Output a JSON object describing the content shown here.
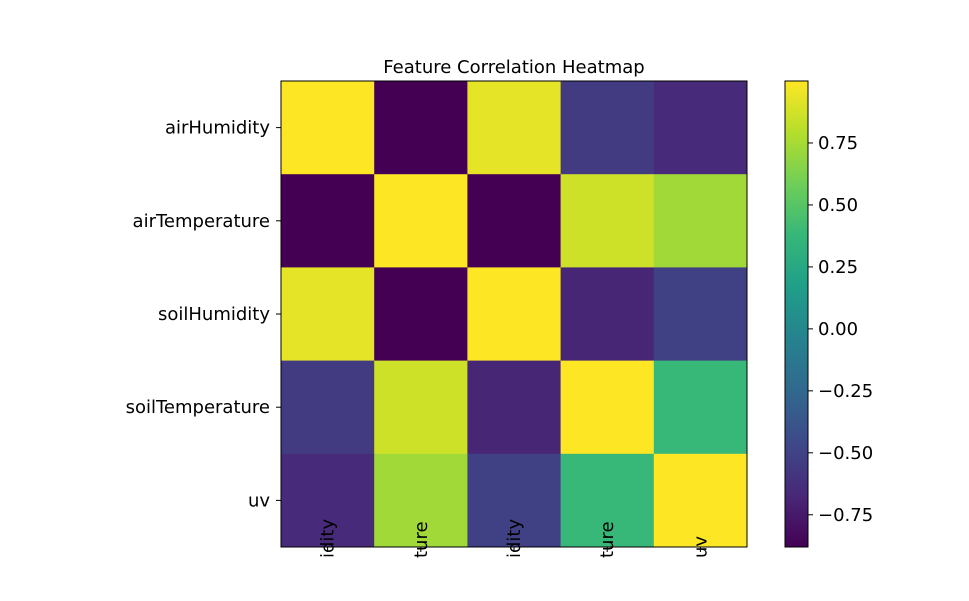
{
  "chart_data": {
    "type": "heatmap",
    "title": "Feature Correlation Heatmap",
    "row_labels": [
      "airHumidity",
      "airTemperature",
      "soilHumidity",
      "soilTemperature",
      "uv"
    ],
    "col_labels": [
      "idity",
      "ture",
      "idity",
      "ture",
      "uv"
    ],
    "values": [
      [
        1.0,
        -0.88,
        0.93,
        -0.55,
        -0.65
      ],
      [
        -0.88,
        1.0,
        -0.88,
        0.86,
        0.73
      ],
      [
        0.93,
        -0.88,
        1.0,
        -0.68,
        -0.51
      ],
      [
        -0.55,
        0.86,
        -0.68,
        1.0,
        0.38
      ],
      [
        -0.65,
        0.73,
        -0.51,
        0.38,
        1.0
      ]
    ],
    "colormap": "viridis",
    "vmin": -0.88,
    "vmax": 1.0,
    "colorbar_ticks": [
      0.75,
      0.5,
      0.25,
      0.0,
      -0.25,
      -0.5,
      -0.75
    ],
    "colorbar_tick_labels": [
      "0.75",
      "0.50",
      "0.25",
      "0.00",
      "−0.25",
      "−0.50",
      "−0.75"
    ],
    "grid": false,
    "legend": "colorbar-right"
  }
}
